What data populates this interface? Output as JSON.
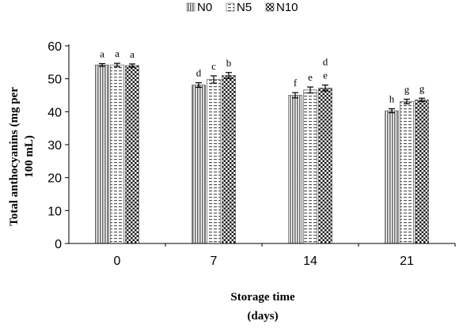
{
  "chart_data": {
    "type": "bar",
    "title": "",
    "xlabel_lines": [
      "Storage time",
      "(days)"
    ],
    "ylabel_lines": [
      "Total anthocyanins (mg per",
      "100 mL)"
    ],
    "categories": [
      "0",
      "7",
      "14",
      "21"
    ],
    "ylim": [
      0,
      60
    ],
    "yticks": [
      "0",
      "10",
      "20",
      "30",
      "40",
      "50",
      "60"
    ],
    "grid": false,
    "legend_position": "top",
    "error_bars": true,
    "series": [
      {
        "name": "N0",
        "values": [
          54.2,
          48.1,
          45.0,
          40.3
        ],
        "errors": [
          0.4,
          0.7,
          0.8,
          0.6
        ],
        "letters": [
          "a",
          "d",
          "f",
          "h"
        ],
        "pattern": "vertical-lines"
      },
      {
        "name": "N5",
        "values": [
          54.2,
          49.8,
          46.6,
          43.1
        ],
        "errors": [
          0.5,
          1.1,
          0.9,
          0.7
        ],
        "letters": [
          "a",
          "c",
          "e",
          "g"
        ],
        "pattern": "horizontal-dashes"
      },
      {
        "name": "N10",
        "values": [
          54.0,
          51.0,
          47.2,
          43.6
        ],
        "errors": [
          0.5,
          0.9,
          0.9,
          0.5
        ],
        "letters": [
          "a",
          "b",
          "e",
          "g"
        ],
        "letters_high": [
          "",
          "",
          "d",
          ""
        ],
        "pattern": "checker"
      }
    ]
  }
}
